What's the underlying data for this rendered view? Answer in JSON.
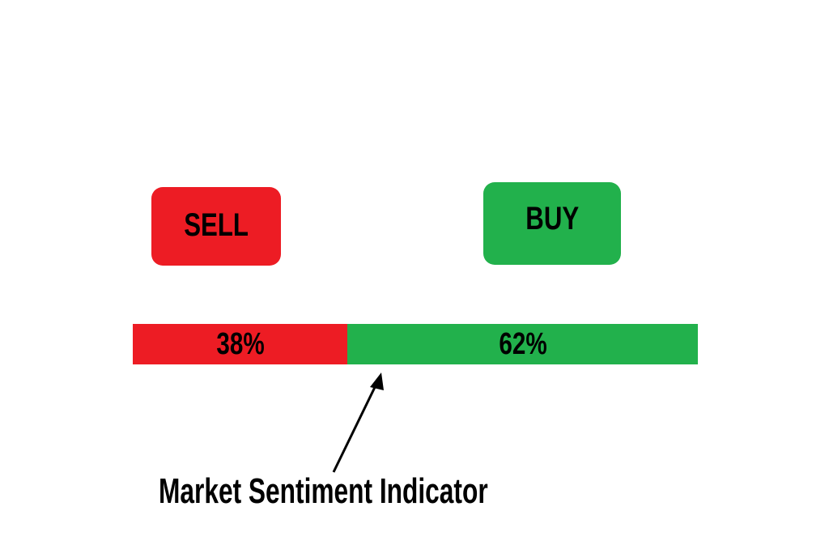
{
  "colors": {
    "sell": "#ed1c24",
    "buy": "#22b14c",
    "text": "#000000"
  },
  "buttons": {
    "sell": "SELL",
    "buy": "BUY"
  },
  "sentiment": {
    "sell_percent": 38,
    "buy_percent": 62,
    "sell_label": "38%",
    "buy_label": "62%"
  },
  "caption": "Market Sentiment Indicator",
  "icons": {
    "pointer": "arrow-up-icon"
  }
}
